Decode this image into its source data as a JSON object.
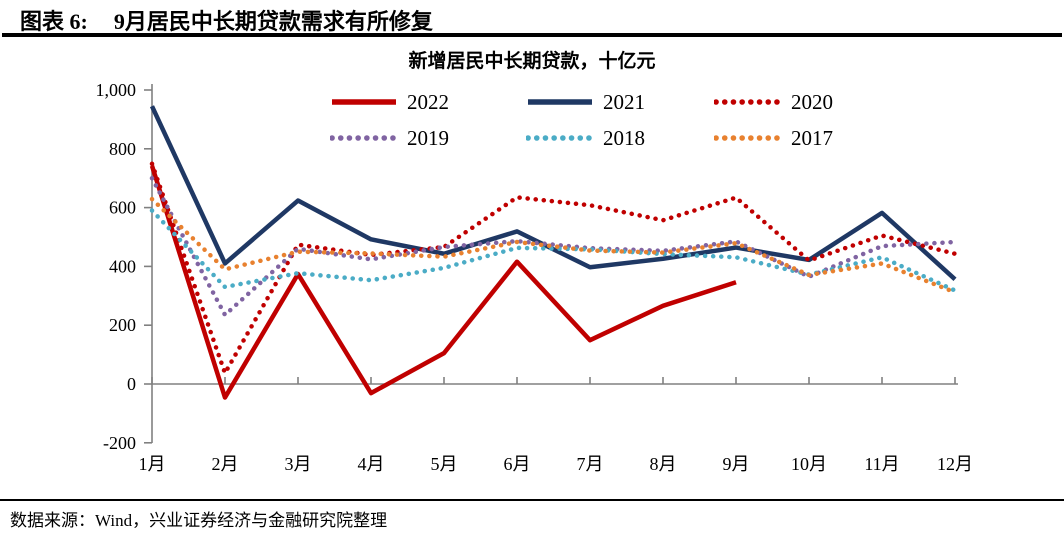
{
  "header": {
    "fig_label": "图表 6:",
    "title": "9月居民中长期贷款需求有所修复"
  },
  "footer": {
    "source": "数据来源：Wind，兴业证券经济与金融研究院整理"
  },
  "chart_data": {
    "type": "line",
    "title": "新增居民中长期贷款，十亿元",
    "categories": [
      "1月",
      "2月",
      "3月",
      "4月",
      "5月",
      "6月",
      "7月",
      "8月",
      "9月",
      "10月",
      "11月",
      "12月"
    ],
    "y_tick_values": [
      1000,
      800,
      600,
      400,
      200,
      0,
      -200
    ],
    "y_tick_labels": [
      "1,000",
      "800",
      "600",
      "400",
      "200",
      "0",
      "-200"
    ],
    "ylim": [
      -200,
      1050
    ],
    "grid": false,
    "legend_position": "top",
    "axis_color": "#808080",
    "series": [
      {
        "name": "2022",
        "color": "#C00000",
        "style": "solid",
        "values": [
          742,
          -46,
          374,
          -31,
          105,
          416,
          149,
          266,
          346
        ]
      },
      {
        "name": "2021",
        "color": "#1F3864",
        "style": "solid",
        "values": [
          945,
          410,
          624,
          492,
          443,
          519,
          397,
          426,
          464,
          422,
          582,
          356
        ]
      },
      {
        "name": "2020",
        "color": "#C00000",
        "style": "dotted",
        "values": [
          749,
          37,
          474,
          439,
          466,
          635,
          608,
          557,
          634,
          420,
          505,
          443
        ]
      },
      {
        "name": "2019",
        "color": "#8064A2",
        "style": "dotted",
        "values": [
          700,
          235,
          460,
          424,
          466,
          486,
          462,
          453,
          485,
          365,
          469,
          483
        ]
      },
      {
        "name": "2018",
        "color": "#4BACC6",
        "style": "dotted",
        "values": [
          590,
          330,
          377,
          353,
          395,
          463,
          458,
          442,
          431,
          372,
          431,
          318
        ]
      },
      {
        "name": "2017",
        "color": "#E8812F",
        "style": "dotted",
        "values": [
          629,
          390,
          450,
          444,
          433,
          483,
          454,
          447,
          479,
          371,
          410,
          312
        ]
      }
    ]
  }
}
